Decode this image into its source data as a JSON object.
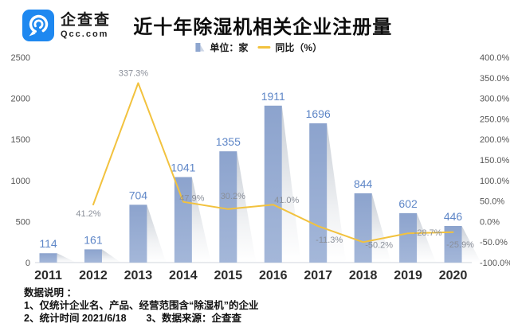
{
  "header": {
    "brand_name": "企查查",
    "brand_domain": "Qcc.com",
    "title": "近十年除湿机相关企业注册量"
  },
  "legend": {
    "bar_label": "单位：家",
    "line_label": "同比（%）"
  },
  "colors": {
    "logo_blue": "#1e88f0",
    "bar_top": "#8ca3cd",
    "bar_bottom": "#a4b7d9",
    "bar_value_label": "#5e86c7",
    "line": "#f2c23e",
    "pct_label": "#8a8f99",
    "axis_text": "#555555",
    "year_text": "#2b2b2b",
    "baseline": "#d9dde3",
    "shadow": "#9ca6b4"
  },
  "chart_data": {
    "type": "bar+line",
    "title": "近十年除湿机相关企业注册量",
    "categories": [
      "2011",
      "2012",
      "2013",
      "2014",
      "2015",
      "2016",
      "2017",
      "2018",
      "2019",
      "2020"
    ],
    "series": [
      {
        "name": "单位：家",
        "type": "bar",
        "axis": "left",
        "values": [
          114,
          161,
          704,
          1041,
          1355,
          1911,
          1696,
          844,
          602,
          446
        ]
      },
      {
        "name": "同比（%）",
        "type": "line",
        "axis": "right",
        "values": [
          null,
          41.2,
          337.3,
          47.9,
          30.2,
          41.0,
          -11.3,
          -50.2,
          -28.7,
          -25.9
        ],
        "labels": [
          null,
          "41.2%",
          "337.3%",
          "47.9%",
          "30.2%",
          "41.0%",
          "-11.3%",
          "-50.2%",
          "-28.7%",
          "-25.9%"
        ]
      }
    ],
    "left_axis": {
      "min": 0,
      "max": 2500,
      "ticks": [
        0,
        500,
        1000,
        1500,
        2000,
        2500
      ]
    },
    "right_axis": {
      "min": -100,
      "max": 400,
      "ticks": [
        400,
        350,
        300,
        250,
        200,
        150,
        100,
        50,
        0,
        -50,
        -100
      ],
      "tick_format": "percent_1dp"
    },
    "grid": false,
    "legend_position": "top-center"
  },
  "footer": {
    "heading": "数据说明 ：",
    "line1": "1、仅统计企业名、产品、经营范围含“除湿机”的企业",
    "line2": "2、统计时间 2021/6/18　　3、数据来源：企查查"
  }
}
